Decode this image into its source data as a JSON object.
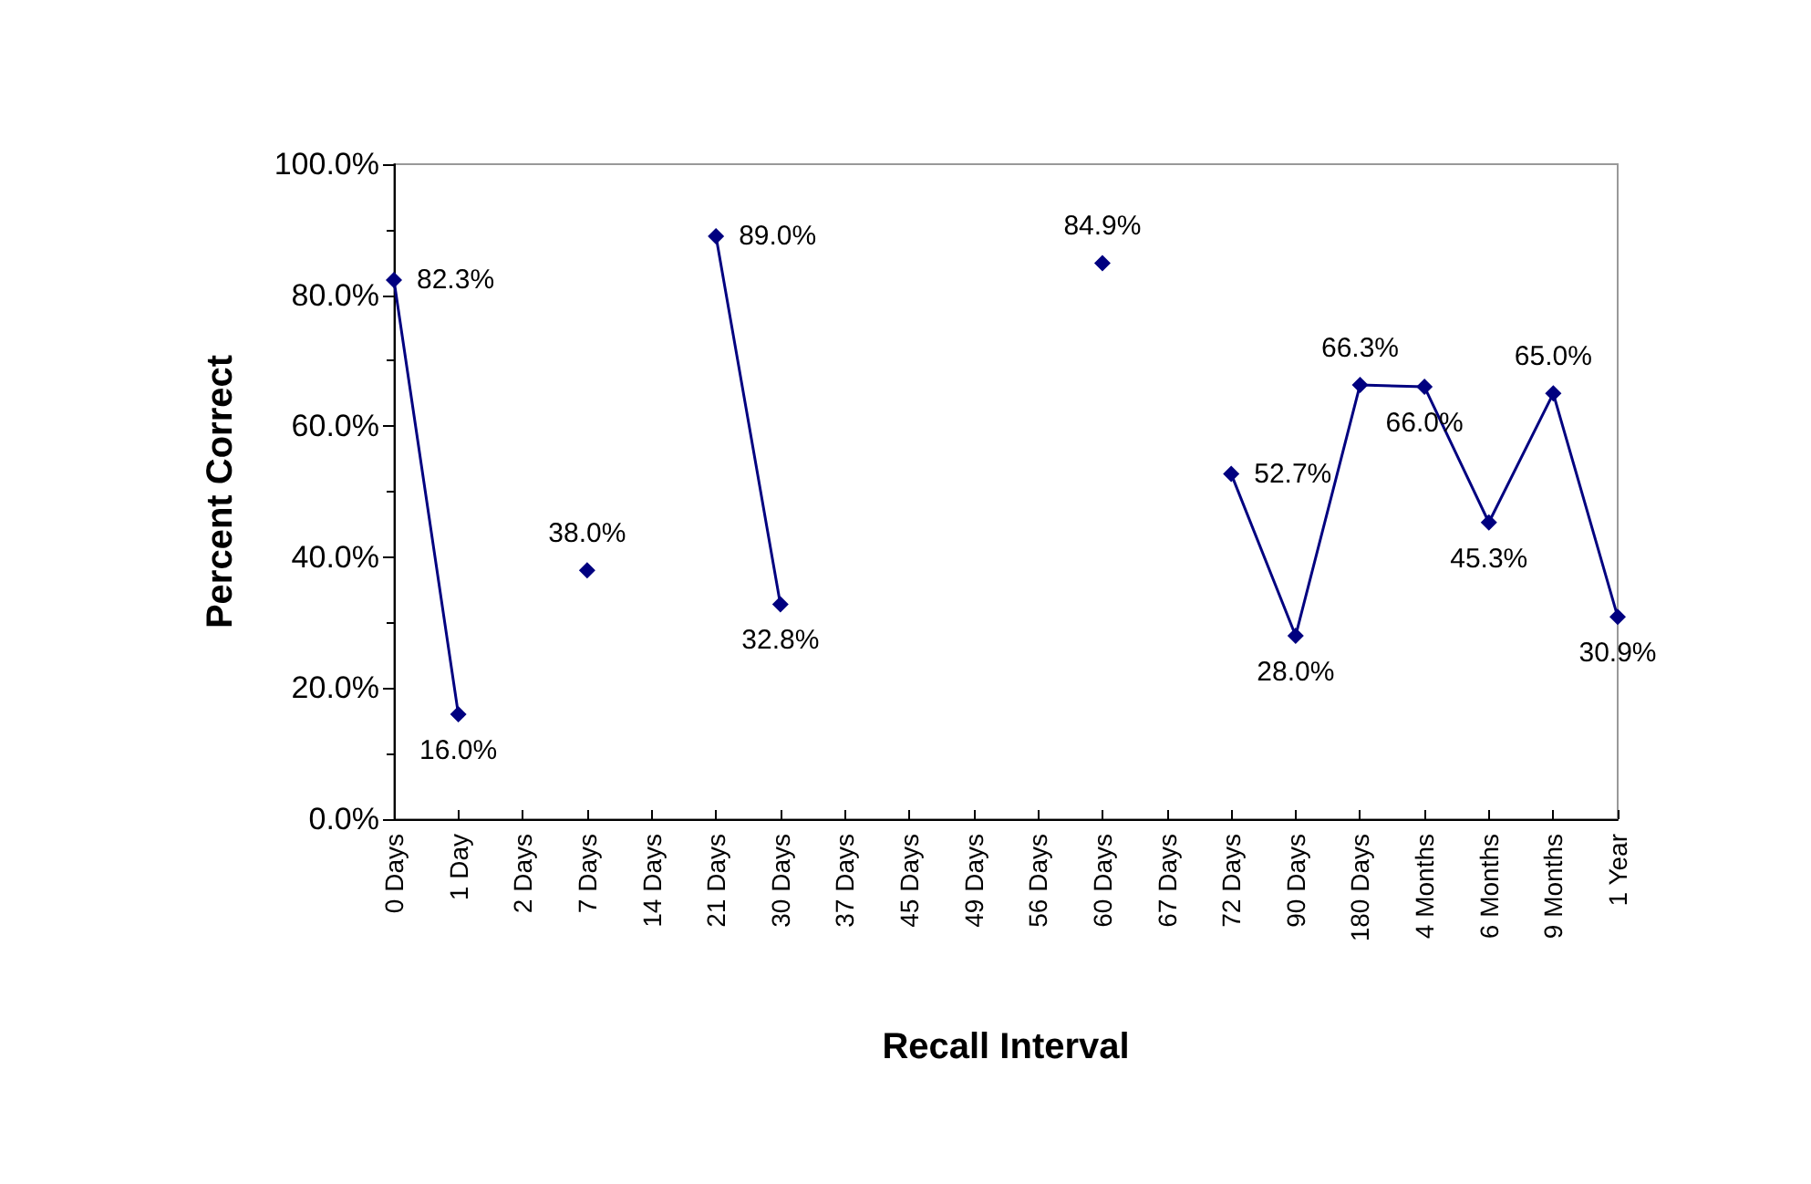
{
  "chart_data": {
    "type": "line",
    "xlabel": "Recall Interval",
    "ylabel": "Percent Correct",
    "categories": [
      "0 Days",
      "1 Day",
      "2 Days",
      "7 Days",
      "14 Days",
      "21 Days",
      "30 Days",
      "37 Days",
      "45 Days",
      "49 Days",
      "56 Days",
      "60 Days",
      "67 Days",
      "72 Days",
      "90 Days",
      "180 Days",
      "4 Months",
      "6 Months",
      "9 Months",
      "1 Year"
    ],
    "series": [
      {
        "color": "#000080",
        "values": [
          82.3,
          16.0,
          null,
          38.0,
          null,
          89.0,
          32.8,
          null,
          null,
          null,
          null,
          84.9,
          null,
          52.7,
          28.0,
          66.3,
          66.0,
          45.3,
          65.0,
          30.9
        ]
      }
    ],
    "ylim": [
      0,
      100
    ],
    "yticks": [
      {
        "value": 0,
        "label": "0.0%"
      },
      {
        "value": 20,
        "label": "20.0%"
      },
      {
        "value": 40,
        "label": "40.0%"
      },
      {
        "value": 60,
        "label": "60.0%"
      },
      {
        "value": 80,
        "label": "80.0%"
      },
      {
        "value": 100,
        "label": "100.0%"
      }
    ],
    "value_labels": [
      "82.3%",
      "16.0%",
      null,
      "38.0%",
      null,
      "89.0%",
      "32.8%",
      null,
      null,
      null,
      null,
      "84.9%",
      null,
      "52.7%",
      "28.0%",
      "66.3%",
      "66.0%",
      "45.3%",
      "65.0%",
      "30.9%"
    ],
    "grid": false,
    "marker": "diamond",
    "line_style": "solid"
  }
}
